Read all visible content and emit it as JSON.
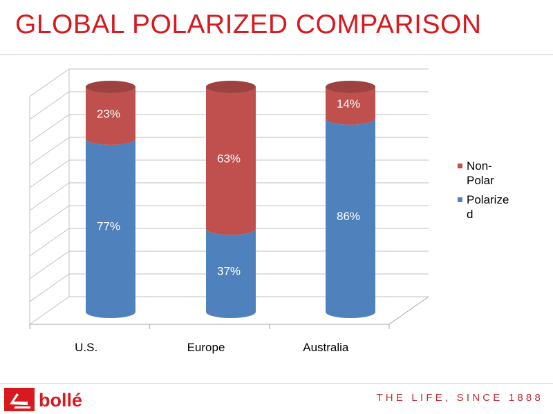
{
  "slide": {
    "title": "GLOBAL POLARIZED COMPARISON",
    "brand": "bollé",
    "tagline": "THE LIFE, SINCE 1888"
  },
  "colors": {
    "title": "#d71920",
    "non_polar": "#c0504d",
    "polarized": "#4f81bd"
  },
  "chart_data": {
    "type": "bar",
    "stacked": true,
    "style": "3d-cylinder",
    "categories": [
      "U.S.",
      "Europe",
      "Australia"
    ],
    "series": [
      {
        "name": "Polarized",
        "values": [
          77,
          37,
          86
        ],
        "labels": [
          "77%",
          "37%",
          "86%"
        ],
        "color": "#4f81bd"
      },
      {
        "name": "Non-Polar",
        "values": [
          23,
          63,
          14
        ],
        "labels": [
          "23%",
          "63%",
          "14%"
        ],
        "color": "#c0504d"
      }
    ],
    "legend_entries": [
      {
        "lines": [
          "Non-",
          "Polar"
        ],
        "series": "Non-Polar",
        "color": "#c0504d"
      },
      {
        "lines": [
          "Polarize",
          "d"
        ],
        "series": "Polarized",
        "color": "#4f81bd"
      }
    ],
    "legend_position": "right",
    "ylim": [
      0,
      100
    ],
    "grid": true,
    "y_tick_labels_shown": false,
    "unit": "%"
  }
}
